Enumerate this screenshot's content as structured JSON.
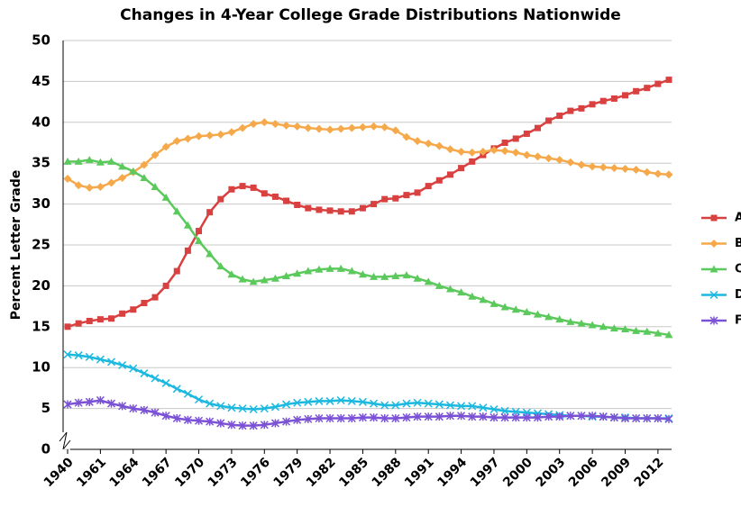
{
  "chart_data": {
    "type": "line",
    "title": "Changes in 4-Year College Grade Distributions Nationwide",
    "y_label": "Percent Letter Grade",
    "categories": [
      "1940",
      null,
      null,
      "1961",
      null,
      null,
      "1964",
      null,
      null,
      "1967",
      null,
      null,
      "1970",
      null,
      null,
      "1973",
      null,
      null,
      "1976",
      null,
      null,
      "1979",
      null,
      null,
      "1982",
      null,
      null,
      "1985",
      null,
      null,
      "1988",
      null,
      null,
      "1991",
      null,
      null,
      "1994",
      null,
      null,
      "1997",
      null,
      null,
      "2000",
      null,
      null,
      "2003",
      null,
      null,
      "2006",
      null,
      null,
      "2009",
      null,
      null,
      "2012",
      null
    ],
    "ylim": [
      0,
      50
    ],
    "yticks": [
      0,
      5,
      10,
      15,
      20,
      25,
      30,
      35,
      40,
      45,
      50
    ],
    "grid": true,
    "legend": "right",
    "series": [
      {
        "name": "A",
        "color": "#d94040",
        "marker": "square",
        "values": [
          15.0,
          15.4,
          15.7,
          15.9,
          16.0,
          16.6,
          17.1,
          17.9,
          18.6,
          20.0,
          21.8,
          24.3,
          26.7,
          29.0,
          30.6,
          31.8,
          32.2,
          32.0,
          31.3,
          30.9,
          30.4,
          29.9,
          29.5,
          29.3,
          29.2,
          29.1,
          29.1,
          29.5,
          30.0,
          30.6,
          30.7,
          31.1,
          31.4,
          32.2,
          32.9,
          33.6,
          34.4,
          35.2,
          36.0,
          36.8,
          37.5,
          38.0,
          38.6,
          39.3,
          40.2,
          40.8,
          41.4,
          41.7,
          42.2,
          42.6,
          42.9,
          43.3,
          43.8,
          44.2,
          44.7,
          45.2
        ]
      },
      {
        "name": "B",
        "color": "#f5a94a",
        "marker": "diamond",
        "values": [
          33.1,
          32.3,
          32.0,
          32.1,
          32.6,
          33.2,
          33.9,
          34.8,
          36.0,
          37.0,
          37.7,
          38.0,
          38.3,
          38.4,
          38.5,
          38.8,
          39.3,
          39.8,
          40.0,
          39.8,
          39.6,
          39.5,
          39.3,
          39.2,
          39.1,
          39.2,
          39.3,
          39.4,
          39.5,
          39.4,
          39.0,
          38.2,
          37.7,
          37.4,
          37.1,
          36.7,
          36.4,
          36.3,
          36.4,
          36.6,
          36.5,
          36.3,
          36.0,
          35.8,
          35.6,
          35.4,
          35.1,
          34.8,
          34.6,
          34.5,
          34.4,
          34.3,
          34.2,
          33.9,
          33.7,
          33.6
        ]
      },
      {
        "name": "C",
        "color": "#5cc95c",
        "marker": "triangle",
        "values": [
          35.2,
          35.2,
          35.4,
          35.1,
          35.2,
          34.6,
          34.0,
          33.2,
          32.1,
          30.8,
          29.1,
          27.4,
          25.5,
          23.9,
          22.4,
          21.4,
          20.8,
          20.5,
          20.7,
          20.9,
          21.2,
          21.5,
          21.8,
          22.0,
          22.1,
          22.1,
          21.8,
          21.4,
          21.1,
          21.1,
          21.2,
          21.3,
          20.9,
          20.5,
          20.0,
          19.6,
          19.2,
          18.7,
          18.3,
          17.8,
          17.4,
          17.1,
          16.8,
          16.5,
          16.2,
          15.9,
          15.6,
          15.4,
          15.2,
          15.0,
          14.8,
          14.7,
          14.5,
          14.4,
          14.2,
          14.0
        ]
      },
      {
        "name": "D",
        "color": "#1bb8e0",
        "marker": "x",
        "values": [
          11.6,
          11.5,
          11.3,
          11.0,
          10.7,
          10.3,
          9.9,
          9.3,
          8.7,
          8.1,
          7.4,
          6.8,
          6.1,
          5.6,
          5.3,
          5.1,
          5.0,
          4.9,
          5.0,
          5.2,
          5.5,
          5.7,
          5.8,
          5.9,
          5.9,
          6.0,
          5.9,
          5.8,
          5.6,
          5.4,
          5.4,
          5.6,
          5.7,
          5.6,
          5.5,
          5.4,
          5.3,
          5.3,
          5.1,
          4.9,
          4.7,
          4.6,
          4.5,
          4.4,
          4.3,
          4.2,
          4.1,
          4.1,
          4.0,
          4.0,
          3.9,
          3.9,
          3.8,
          3.8,
          3.8,
          3.8
        ]
      },
      {
        "name": "F",
        "color": "#7b52d6",
        "marker": "star",
        "values": [
          5.5,
          5.7,
          5.8,
          6.0,
          5.6,
          5.3,
          5.0,
          4.8,
          4.5,
          4.1,
          3.8,
          3.6,
          3.5,
          3.4,
          3.2,
          3.0,
          2.9,
          2.9,
          3.0,
          3.2,
          3.4,
          3.6,
          3.7,
          3.8,
          3.8,
          3.8,
          3.8,
          3.9,
          3.9,
          3.8,
          3.8,
          3.9,
          4.0,
          4.0,
          4.0,
          4.1,
          4.1,
          4.0,
          4.0,
          3.9,
          3.9,
          3.9,
          3.9,
          3.9,
          4.0,
          4.0,
          4.1,
          4.1,
          4.1,
          4.0,
          3.9,
          3.8,
          3.8,
          3.8,
          3.8,
          3.7
        ]
      }
    ]
  }
}
